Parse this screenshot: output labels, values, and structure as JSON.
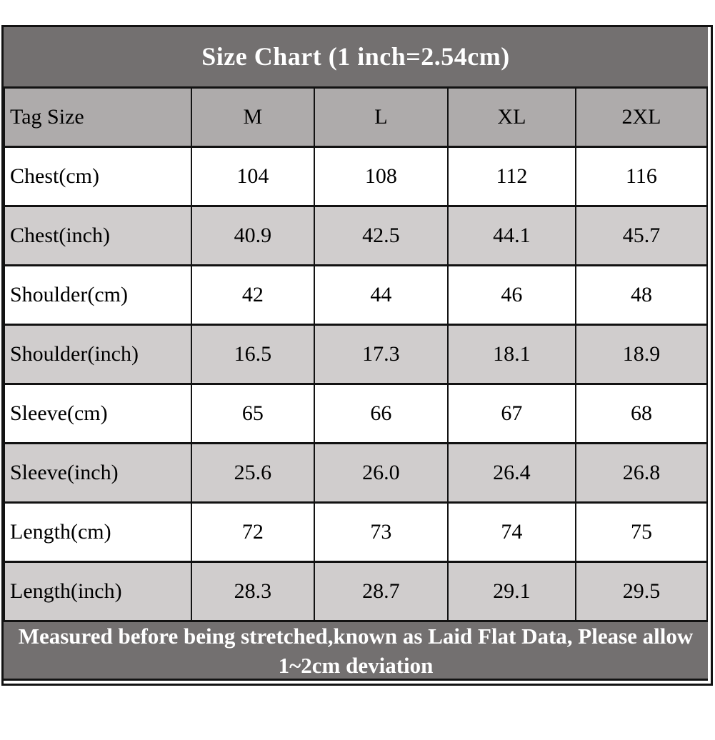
{
  "title": "Size Chart (1 inch=2.54cm)",
  "footnote": "Measured before being stretched,known as Laid Flat Data, Please allow 1~2cm deviation",
  "colors": {
    "title_bg": "#737070",
    "header_row_bg": "#aeabab",
    "alt_row_bg": "#d0cdcd",
    "white_row_bg": "#ffffff",
    "border": "#121212",
    "title_text": "#ffffff",
    "cell_text": "#000000"
  },
  "chart_data": {
    "type": "table",
    "title": "Size Chart (1 inch=2.54cm)",
    "columns": [
      "Tag Size",
      "M",
      "L",
      "XL",
      "2XL"
    ],
    "rows": [
      {
        "label": "Chest(cm)",
        "values": [
          "104",
          "108",
          "112",
          "116"
        ]
      },
      {
        "label": "Chest(inch)",
        "values": [
          "40.9",
          "42.5",
          "44.1",
          "45.7"
        ]
      },
      {
        "label": "Shoulder(cm)",
        "values": [
          "42",
          "44",
          "46",
          "48"
        ]
      },
      {
        "label": "Shoulder(inch)",
        "values": [
          "16.5",
          "17.3",
          "18.1",
          "18.9"
        ]
      },
      {
        "label": "Sleeve(cm)",
        "values": [
          "65",
          "66",
          "67",
          "68"
        ]
      },
      {
        "label": "Sleeve(inch)",
        "values": [
          "25.6",
          "26.0",
          "26.4",
          "26.8"
        ]
      },
      {
        "label": "Length(cm)",
        "values": [
          "72",
          "73",
          "74",
          "75"
        ]
      },
      {
        "label": "Length(inch)",
        "values": [
          "28.3",
          "28.7",
          "29.1",
          "29.5"
        ]
      }
    ],
    "footnote": "Measured before being stretched,known as Laid Flat Data, Please allow 1~2cm deviation"
  }
}
